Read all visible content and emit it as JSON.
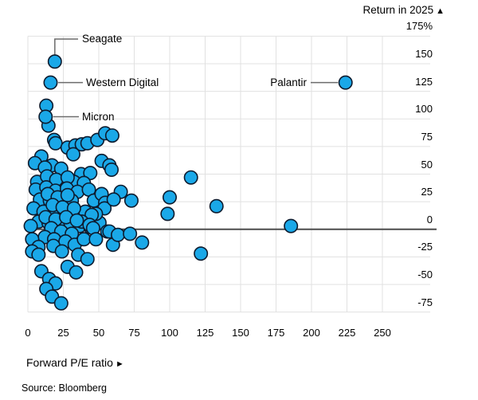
{
  "header": {
    "title": "Return in 2025"
  },
  "icons": {
    "up_arrow": "▲",
    "right_arrow": "►"
  },
  "footer": {
    "xaxis_label": "Forward P/E ratio",
    "source": "Source: Bloomberg"
  },
  "colors": {
    "marker_fill": "#1AA8E8",
    "marker_stroke": "#0D1B2E",
    "grid": "#E1E1E1",
    "zero_line": "#4D4D4D",
    "leader": "#6B6B6B",
    "text": "#000000"
  },
  "chart_data": {
    "type": "scatter",
    "title": "Return in 2025",
    "xlabel": "Forward P/E ratio",
    "ylabel": "Return in 2025 (%)",
    "xlim": [
      0,
      284
    ],
    "ylim": [
      -87,
      175
    ],
    "grid": true,
    "zero_baseline": true,
    "x_ticks": [
      0,
      25,
      50,
      75,
      100,
      125,
      150,
      175,
      200,
      225,
      250
    ],
    "x_tick_labels": [
      "0",
      "25",
      "50",
      "75",
      "100",
      "125",
      "150",
      "175",
      "200",
      "225",
      "250"
    ],
    "y_ticks": [
      175,
      150,
      125,
      100,
      75,
      50,
      25,
      0,
      -25,
      -50,
      -75
    ],
    "y_tick_labels": [
      "175%",
      "150",
      "125",
      "100",
      "75",
      "50",
      "25",
      "0",
      "-25",
      "-50",
      "-75"
    ],
    "annotations": [
      {
        "label": "Seagate",
        "pe": 19,
        "ret": 152
      },
      {
        "label": "Western Digital",
        "pe": 16,
        "ret": 133
      },
      {
        "label": "Micron",
        "pe": 12.5,
        "ret": 102
      },
      {
        "label": "Palantir",
        "pe": 224,
        "ret": 133
      }
    ],
    "points": [
      [
        13,
        112
      ],
      [
        14.5,
        94
      ],
      [
        18.5,
        81
      ],
      [
        9.5,
        66
      ],
      [
        19.5,
        78
      ],
      [
        28,
        74
      ],
      [
        33.5,
        76
      ],
      [
        38,
        77
      ],
      [
        42,
        78
      ],
      [
        49,
        81
      ],
      [
        54.5,
        87
      ],
      [
        59.5,
        85
      ],
      [
        17,
        58
      ],
      [
        23.5,
        55
      ],
      [
        32,
        68
      ],
      [
        37.5,
        50
      ],
      [
        44,
        51
      ],
      [
        32.5,
        43
      ],
      [
        39.5,
        42
      ],
      [
        52,
        62
      ],
      [
        57.5,
        58
      ],
      [
        5,
        60
      ],
      [
        12,
        56
      ],
      [
        6.5,
        43
      ],
      [
        13.5,
        48
      ],
      [
        20,
        45
      ],
      [
        28,
        47
      ],
      [
        5.5,
        36
      ],
      [
        13,
        38
      ],
      [
        19.5,
        35
      ],
      [
        27.5,
        37
      ],
      [
        35,
        34
      ],
      [
        43,
        36
      ],
      [
        8.5,
        27
      ],
      [
        15.5,
        26
      ],
      [
        23,
        24
      ],
      [
        31,
        26
      ],
      [
        46.5,
        26
      ],
      [
        52,
        32
      ],
      [
        54.5,
        24
      ],
      [
        4,
        19
      ],
      [
        11,
        16
      ],
      [
        18.5,
        14
      ],
      [
        26,
        16
      ],
      [
        33.5,
        13
      ],
      [
        41,
        11
      ],
      [
        7.5,
        7
      ],
      [
        14.5,
        6
      ],
      [
        22,
        4
      ],
      [
        30,
        6
      ],
      [
        36.5,
        3
      ],
      [
        44,
        2
      ],
      [
        50.5,
        6
      ],
      [
        54,
        19
      ],
      [
        48,
        14
      ],
      [
        40.5,
        16
      ],
      [
        45,
        13
      ],
      [
        38,
        7
      ],
      [
        43.5,
        4
      ],
      [
        46,
        1
      ],
      [
        56,
        -2
      ],
      [
        14,
        32
      ],
      [
        21,
        29
      ],
      [
        28,
        31
      ],
      [
        17.5,
        22
      ],
      [
        24.5,
        20
      ],
      [
        32.5,
        19
      ],
      [
        12.5,
        11
      ],
      [
        19.5,
        9
      ],
      [
        27,
        11
      ],
      [
        34.5,
        8
      ],
      [
        16.5,
        1
      ],
      [
        23.5,
        -2
      ],
      [
        31,
        -4
      ],
      [
        12,
        -7
      ],
      [
        18.5,
        -9
      ],
      [
        26.5,
        -11
      ],
      [
        33,
        -14
      ],
      [
        39.5,
        -9
      ],
      [
        48,
        -9
      ],
      [
        2,
        3
      ],
      [
        3,
        -9
      ],
      [
        7.5,
        -16
      ],
      [
        3,
        -20
      ],
      [
        7.5,
        -23
      ],
      [
        18,
        -15
      ],
      [
        24,
        -20
      ],
      [
        35.5,
        -23
      ],
      [
        42,
        -27
      ],
      [
        28,
        -34
      ],
      [
        9.5,
        -38
      ],
      [
        15,
        -45
      ],
      [
        19.5,
        -49
      ],
      [
        13,
        -54
      ],
      [
        17,
        -61
      ],
      [
        23.5,
        -67
      ],
      [
        34,
        -39
      ],
      [
        60,
        -14
      ],
      [
        57.5,
        -2
      ],
      [
        63.5,
        -5
      ],
      [
        72,
        -4
      ],
      [
        80.5,
        -12
      ],
      [
        59,
        54
      ],
      [
        65.5,
        34
      ],
      [
        60.5,
        27
      ],
      [
        73,
        26
      ],
      [
        100,
        29
      ],
      [
        98.5,
        14
      ],
      [
        115,
        47
      ],
      [
        133,
        21
      ],
      [
        122,
        -22
      ],
      [
        185.5,
        3
      ]
    ]
  }
}
